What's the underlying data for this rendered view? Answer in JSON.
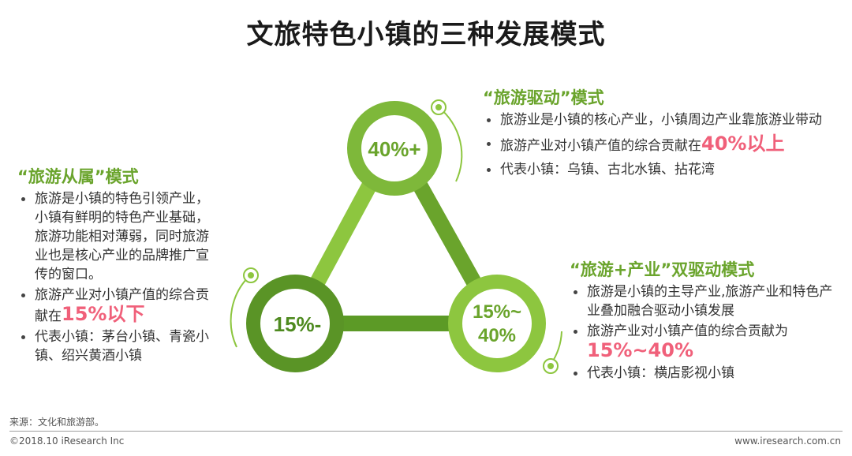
{
  "title": "文旅特色小镇的三种发展模式",
  "colors": {
    "primary_green": "#6aa42c",
    "light_green": "#8dc63f",
    "dark_green": "#4e8a1f",
    "highlight_pink": "#f0607a"
  },
  "nodes": {
    "top": "40%+",
    "left": "15%-",
    "right_line1": "15%~",
    "right_line2": "40%"
  },
  "modes": {
    "left": {
      "title": "“旅游从属”模式",
      "b1": "旅游是小镇的特色引领产业，小镇有鲜明的特色产业基础，旅游功能相对薄弱，同时旅游业也是核心产业的品牌推广宣传的窗口。",
      "b2_text": "旅游产业对小镇产值的综合贡献在",
      "b2_hl": "15%以下",
      "b3": "代表小镇：茅台小镇、青瓷小镇、绍兴黄酒小镇"
    },
    "top": {
      "title": "“旅游驱动”模式",
      "b1": "旅游业是小镇的核心产业，小镇周边产业靠旅游业带动",
      "b2_text": "旅游产业对小镇产值的综合贡献在",
      "b2_hl": "40%以上",
      "b3": "代表小镇：乌镇、古北水镇、拈花湾"
    },
    "right": {
      "title": "“旅游+产业”双驱动模式",
      "b1": "旅游是小镇的主导产业,旅游产业和特色产业叠加融合驱动小镇发展",
      "b2_text": "旅游产业对小镇产值的综合贡献为",
      "b2_hl": "15%~40%",
      "b3": "代表小镇：横店影视小镇"
    }
  },
  "footer": {
    "source": "来源：文化和旅游部。",
    "copyright": "©2018.10 iResearch Inc",
    "website": "www.iresearch.com.cn"
  }
}
